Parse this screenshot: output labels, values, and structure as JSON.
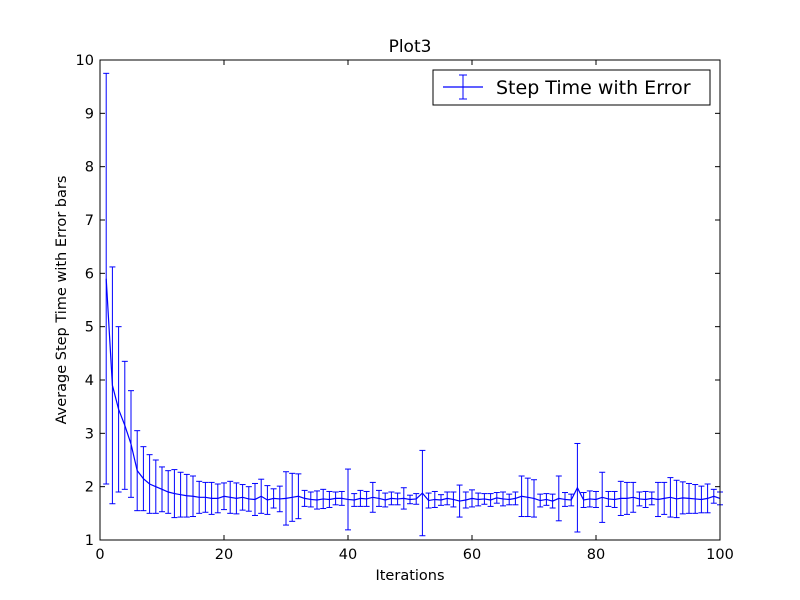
{
  "chart_data": {
    "type": "line",
    "title": "Plot3",
    "xlabel": "Iterations",
    "ylabel": "Average Step Time with Error bars",
    "xlim": [
      0,
      100
    ],
    "ylim": [
      1,
      10
    ],
    "xticks": [
      0,
      20,
      40,
      60,
      80,
      100
    ],
    "yticks": [
      1,
      2,
      3,
      4,
      5,
      6,
      7,
      8,
      9,
      10
    ],
    "grid": false,
    "legend_position": "top-right",
    "series": [
      {
        "name": "Step Time with Error",
        "color": "#0000ff",
        "x": [
          1,
          2,
          3,
          4,
          5,
          6,
          7,
          8,
          9,
          10,
          11,
          12,
          13,
          14,
          15,
          16,
          17,
          18,
          19,
          20,
          21,
          22,
          23,
          24,
          25,
          26,
          27,
          28,
          29,
          30,
          31,
          32,
          33,
          34,
          35,
          36,
          37,
          38,
          39,
          40,
          41,
          42,
          43,
          44,
          45,
          46,
          47,
          48,
          49,
          50,
          51,
          52,
          53,
          54,
          55,
          56,
          57,
          58,
          59,
          60,
          61,
          62,
          63,
          64,
          65,
          66,
          67,
          68,
          69,
          70,
          71,
          72,
          73,
          74,
          75,
          76,
          77,
          78,
          79,
          80,
          81,
          82,
          83,
          84,
          85,
          86,
          87,
          88,
          89,
          90,
          91,
          92,
          93,
          94,
          95,
          96,
          97,
          98,
          99,
          100
        ],
        "y": [
          5.9,
          3.9,
          3.45,
          3.15,
          2.8,
          2.3,
          2.15,
          2.05,
          2.0,
          1.95,
          1.9,
          1.87,
          1.85,
          1.83,
          1.82,
          1.8,
          1.8,
          1.78,
          1.78,
          1.82,
          1.8,
          1.78,
          1.8,
          1.77,
          1.76,
          1.82,
          1.75,
          1.78,
          1.77,
          1.78,
          1.8,
          1.82,
          1.78,
          1.76,
          1.75,
          1.77,
          1.76,
          1.78,
          1.78,
          1.76,
          1.75,
          1.78,
          1.77,
          1.8,
          1.78,
          1.75,
          1.78,
          1.77,
          1.78,
          1.76,
          1.77,
          1.88,
          1.74,
          1.76,
          1.75,
          1.78,
          1.76,
          1.73,
          1.75,
          1.78,
          1.76,
          1.77,
          1.75,
          1.79,
          1.77,
          1.76,
          1.78,
          1.82,
          1.8,
          1.78,
          1.74,
          1.76,
          1.73,
          1.78,
          1.76,
          1.75,
          1.98,
          1.75,
          1.77,
          1.76,
          1.8,
          1.77,
          1.76,
          1.78,
          1.78,
          1.8,
          1.77,
          1.76,
          1.78,
          1.76,
          1.78,
          1.8,
          1.77,
          1.79,
          1.78,
          1.77,
          1.76,
          1.78,
          1.82,
          1.78
        ],
        "yerr": [
          3.85,
          2.22,
          1.55,
          1.2,
          1.0,
          0.75,
          0.6,
          0.55,
          0.5,
          0.42,
          0.4,
          0.45,
          0.42,
          0.4,
          0.38,
          0.3,
          0.28,
          0.3,
          0.27,
          0.25,
          0.3,
          0.29,
          0.24,
          0.23,
          0.3,
          0.32,
          0.27,
          0.18,
          0.24,
          0.5,
          0.45,
          0.42,
          0.15,
          0.14,
          0.17,
          0.18,
          0.15,
          0.12,
          0.13,
          0.57,
          0.12,
          0.15,
          0.14,
          0.28,
          0.15,
          0.13,
          0.12,
          0.11,
          0.2,
          0.08,
          0.1,
          0.8,
          0.14,
          0.15,
          0.1,
          0.12,
          0.14,
          0.3,
          0.15,
          0.16,
          0.12,
          0.1,
          0.12,
          0.1,
          0.13,
          0.1,
          0.12,
          0.38,
          0.36,
          0.35,
          0.12,
          0.11,
          0.13,
          0.42,
          0.13,
          0.11,
          0.83,
          0.14,
          0.15,
          0.15,
          0.47,
          0.14,
          0.15,
          0.32,
          0.3,
          0.28,
          0.13,
          0.15,
          0.12,
          0.32,
          0.3,
          0.37,
          0.35,
          0.3,
          0.28,
          0.27,
          0.25,
          0.27,
          0.13,
          0.12
        ]
      }
    ]
  }
}
